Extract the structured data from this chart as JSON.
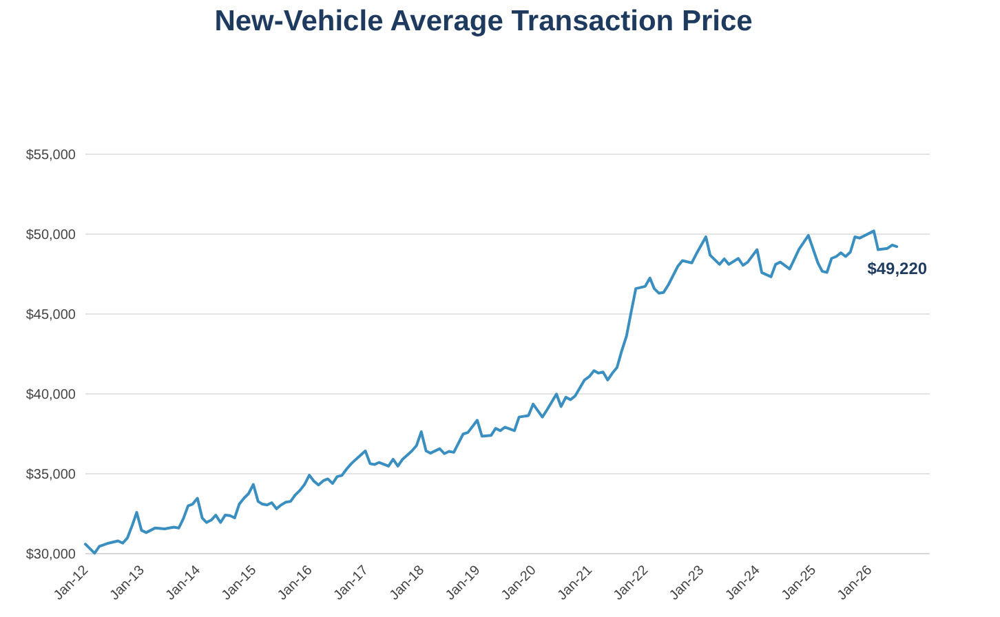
{
  "chart_data": {
    "type": "line",
    "title": "New-Vehicle Average Transaction Price",
    "x": [
      "2012-01",
      "2012-03",
      "2012-04",
      "2012-06",
      "2012-08",
      "2012-09",
      "2012-10",
      "2012-11",
      "2012-12",
      "2013-01",
      "2013-02",
      "2013-04",
      "2013-06",
      "2013-08",
      "2013-09",
      "2013-10",
      "2013-11",
      "2013-12",
      "2014-01",
      "2014-02",
      "2014-03",
      "2014-04",
      "2014-05",
      "2014-06",
      "2014-07",
      "2014-08",
      "2014-09",
      "2014-10",
      "2014-11",
      "2014-12",
      "2015-01",
      "2015-02",
      "2015-03",
      "2015-04",
      "2015-05",
      "2015-06",
      "2015-07",
      "2015-08",
      "2015-09",
      "2015-10",
      "2015-11",
      "2015-12",
      "2016-01",
      "2016-02",
      "2016-03",
      "2016-04",
      "2016-05",
      "2016-06",
      "2016-07",
      "2016-08",
      "2016-09",
      "2016-10",
      "2016-11",
      "2017-01",
      "2017-02",
      "2017-03",
      "2017-04",
      "2017-06",
      "2017-07",
      "2017-08",
      "2017-09",
      "2017-11",
      "2017-12",
      "2018-01",
      "2018-02",
      "2018-03",
      "2018-05",
      "2018-06",
      "2018-07",
      "2018-08",
      "2018-10",
      "2018-11",
      "2019-01",
      "2019-02",
      "2019-04",
      "2019-05",
      "2019-06",
      "2019-07",
      "2019-09",
      "2019-10",
      "2019-12",
      "2020-01",
      "2020-03",
      "2020-04",
      "2020-06",
      "2020-07",
      "2020-08",
      "2020-09",
      "2020-10",
      "2020-12",
      "2021-01",
      "2021-02",
      "2021-03",
      "2021-04",
      "2021-05",
      "2021-06",
      "2021-07",
      "2021-08",
      "2021-09",
      "2021-10",
      "2021-11",
      "2022-01",
      "2022-02",
      "2022-03",
      "2022-04",
      "2022-05",
      "2022-06",
      "2022-08",
      "2022-09",
      "2022-11",
      "2022-12",
      "2023-02",
      "2023-03",
      "2023-05",
      "2023-06",
      "2023-07",
      "2023-09",
      "2023-10",
      "2023-11",
      "2024-01",
      "2024-02",
      "2024-04",
      "2024-05",
      "2024-06",
      "2024-08",
      "2024-10",
      "2024-12",
      "2025-02",
      "2025-03",
      "2025-04",
      "2025-05",
      "2025-06",
      "2025-07",
      "2025-08",
      "2025-09",
      "2025-10",
      "2025-11",
      "2026-02",
      "2026-03",
      "2026-05",
      "2026-06",
      "2026-07"
    ],
    "series": [
      {
        "color": "#3a8fc0",
        "values": [
          30600,
          30030,
          30460,
          30660,
          30800,
          30660,
          30980,
          31750,
          32580,
          31460,
          31320,
          31610,
          31550,
          31660,
          31600,
          32180,
          32990,
          33100,
          33470,
          32240,
          31950,
          32100,
          32410,
          31950,
          32410,
          32380,
          32240,
          33100,
          33470,
          33760,
          34330,
          33270,
          33100,
          33050,
          33190,
          32810,
          33050,
          33220,
          33270,
          33670,
          33960,
          34330,
          34910,
          34530,
          34300,
          34560,
          34680,
          34390,
          34820,
          34900,
          35300,
          35630,
          35910,
          36430,
          35630,
          35580,
          35710,
          35480,
          35910,
          35480,
          35910,
          36430,
          36770,
          37630,
          36430,
          36290,
          36570,
          36260,
          36400,
          36340,
          37490,
          37580,
          38350,
          37350,
          37400,
          37840,
          37700,
          37920,
          37700,
          38550,
          38640,
          39360,
          38550,
          39010,
          39990,
          39210,
          39790,
          39640,
          39870,
          40870,
          41080,
          41450,
          41300,
          41370,
          40870,
          41300,
          41650,
          42700,
          43620,
          45100,
          46590,
          46730,
          47250,
          46590,
          46300,
          46350,
          46820,
          47970,
          48340,
          48200,
          48770,
          49830,
          48680,
          48110,
          48450,
          48110,
          48480,
          48050,
          48250,
          49030,
          47590,
          47330,
          48110,
          48250,
          47820,
          49060,
          49920,
          48200,
          47680,
          47600,
          48480,
          48600,
          48830,
          48600,
          48880,
          49830,
          49750,
          50200,
          49030,
          49110,
          49320,
          49220
        ]
      }
    ],
    "xlim": [
      "2012-01",
      "2027-02"
    ],
    "xticks": [
      {
        "value": "2012-01",
        "label": "Jan-12"
      },
      {
        "value": "2013-01",
        "label": "Jan-13"
      },
      {
        "value": "2014-01",
        "label": "Jan-14"
      },
      {
        "value": "2015-01",
        "label": "Jan-15"
      },
      {
        "value": "2016-01",
        "label": "Jan-16"
      },
      {
        "value": "2017-01",
        "label": "Jan-17"
      },
      {
        "value": "2018-01",
        "label": "Jan-18"
      },
      {
        "value": "2019-01",
        "label": "Jan-19"
      },
      {
        "value": "2020-01",
        "label": "Jan-20"
      },
      {
        "value": "2021-01",
        "label": "Jan-21"
      },
      {
        "value": "2022-01",
        "label": "Jan-22"
      },
      {
        "value": "2023-01",
        "label": "Jan-23"
      },
      {
        "value": "2024-01",
        "label": "Jan-24"
      },
      {
        "value": "2025-01",
        "label": "Jan-25"
      },
      {
        "value": "2026-01",
        "label": "Jan-26"
      }
    ],
    "ylim": [
      30000,
      55000
    ],
    "yticks": [
      {
        "value": 30000,
        "label": "$30,000"
      },
      {
        "value": 35000,
        "label": "$35,000"
      },
      {
        "value": 40000,
        "label": "$40,000"
      },
      {
        "value": 45000,
        "label": "$45,000"
      },
      {
        "value": 50000,
        "label": "$50,000"
      },
      {
        "value": 55000,
        "label": "$55,000"
      }
    ],
    "grid": "y",
    "marker": "none",
    "line_style": "solid",
    "annotations": [
      {
        "text": "$49,220",
        "x": "2026-07",
        "y": 49220
      }
    ]
  }
}
